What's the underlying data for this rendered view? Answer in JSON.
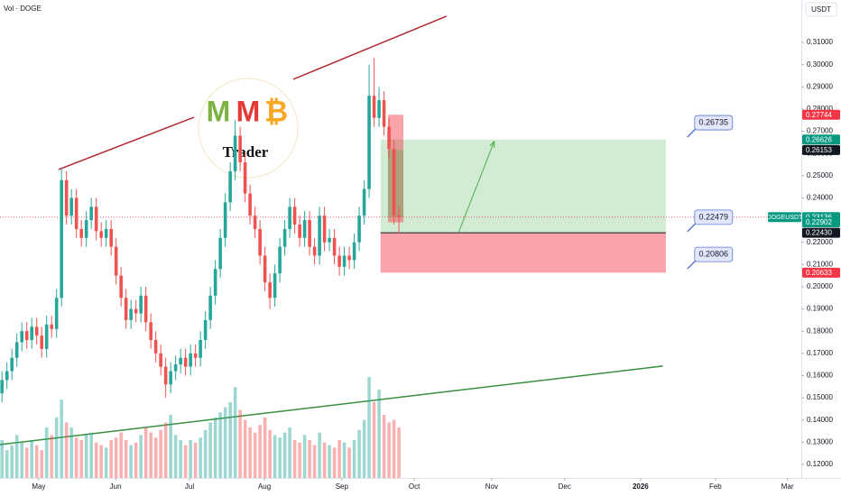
{
  "header": {
    "indicator": "Vol · DOGE",
    "currency": "USDT"
  },
  "logo": {
    "letters": [
      "M",
      "M",
      "₿"
    ],
    "word": "Trader"
  },
  "chart_data": {
    "type": "candlestick",
    "x": [
      0,
      1,
      2,
      3,
      4,
      5,
      6,
      7,
      8,
      9,
      10,
      11,
      12,
      13,
      14,
      15,
      16,
      17,
      18,
      19,
      20,
      21,
      22,
      23,
      24,
      25,
      26,
      27,
      28,
      29,
      30,
      31,
      32,
      33,
      34,
      35,
      36,
      37,
      38,
      39,
      40,
      41,
      42,
      43,
      44,
      45,
      46,
      47,
      48,
      49,
      50,
      51,
      52,
      53,
      54,
      55,
      56,
      57,
      58,
      59,
      60,
      61,
      62,
      63,
      64,
      65,
      66,
      67,
      68,
      69,
      70,
      71,
      72,
      73,
      74,
      75,
      76,
      77,
      78,
      79,
      80
    ],
    "open": [
      0.152,
      0.158,
      0.162,
      0.168,
      0.175,
      0.18,
      0.176,
      0.182,
      0.178,
      0.172,
      0.183,
      0.181,
      0.195,
      0.248,
      0.232,
      0.24,
      0.226,
      0.222,
      0.23,
      0.236,
      0.225,
      0.222,
      0.226,
      0.218,
      0.205,
      0.195,
      0.185,
      0.19,
      0.188,
      0.196,
      0.184,
      0.176,
      0.17,
      0.164,
      0.156,
      0.162,
      0.165,
      0.168,
      0.164,
      0.17,
      0.168,
      0.176,
      0.185,
      0.196,
      0.208,
      0.222,
      0.238,
      0.252,
      0.268,
      0.256,
      0.242,
      0.232,
      0.226,
      0.214,
      0.202,
      0.195,
      0.206,
      0.218,
      0.226,
      0.236,
      0.228,
      0.222,
      0.23,
      0.218,
      0.214,
      0.232,
      0.22,
      0.222,
      0.214,
      0.209,
      0.214,
      0.212,
      0.22,
      0.232,
      0.244,
      0.286,
      0.276,
      0.284,
      0.272,
      0.262,
      0.232
    ],
    "high": [
      0.162,
      0.166,
      0.172,
      0.179,
      0.184,
      0.184,
      0.186,
      0.186,
      0.182,
      0.187,
      0.187,
      0.199,
      0.253,
      0.252,
      0.244,
      0.244,
      0.23,
      0.234,
      0.24,
      0.24,
      0.229,
      0.23,
      0.23,
      0.222,
      0.209,
      0.199,
      0.194,
      0.194,
      0.2,
      0.2,
      0.188,
      0.18,
      0.174,
      0.168,
      0.166,
      0.169,
      0.172,
      0.172,
      0.174,
      0.174,
      0.18,
      0.189,
      0.2,
      0.212,
      0.226,
      0.242,
      0.256,
      0.275,
      0.272,
      0.26,
      0.246,
      0.236,
      0.23,
      0.218,
      0.206,
      0.21,
      0.222,
      0.23,
      0.24,
      0.24,
      0.232,
      0.234,
      0.234,
      0.222,
      0.236,
      0.236,
      0.226,
      0.226,
      0.218,
      0.218,
      0.218,
      0.224,
      0.236,
      0.248,
      0.3,
      0.303,
      0.29,
      0.288,
      0.276,
      0.266,
      0.236
    ],
    "low": [
      0.148,
      0.154,
      0.158,
      0.164,
      0.171,
      0.172,
      0.172,
      0.174,
      0.168,
      0.168,
      0.177,
      0.177,
      0.191,
      0.228,
      0.228,
      0.222,
      0.218,
      0.218,
      0.226,
      0.221,
      0.218,
      0.218,
      0.214,
      0.201,
      0.191,
      0.181,
      0.181,
      0.184,
      0.184,
      0.18,
      0.172,
      0.166,
      0.16,
      0.15,
      0.152,
      0.158,
      0.161,
      0.16,
      0.16,
      0.164,
      0.164,
      0.172,
      0.181,
      0.192,
      0.204,
      0.218,
      0.234,
      0.248,
      0.252,
      0.238,
      0.228,
      0.222,
      0.21,
      0.198,
      0.19,
      0.191,
      0.202,
      0.214,
      0.222,
      0.224,
      0.218,
      0.218,
      0.214,
      0.21,
      0.21,
      0.216,
      0.216,
      0.21,
      0.205,
      0.205,
      0.208,
      0.208,
      0.216,
      0.228,
      0.24,
      0.272,
      0.272,
      0.268,
      0.258,
      0.228,
      0.224
    ],
    "close": [
      0.158,
      0.162,
      0.168,
      0.175,
      0.18,
      0.176,
      0.182,
      0.178,
      0.172,
      0.183,
      0.181,
      0.195,
      0.248,
      0.232,
      0.24,
      0.226,
      0.222,
      0.23,
      0.236,
      0.225,
      0.222,
      0.226,
      0.218,
      0.205,
      0.195,
      0.185,
      0.19,
      0.188,
      0.196,
      0.184,
      0.176,
      0.17,
      0.164,
      0.156,
      0.162,
      0.165,
      0.168,
      0.164,
      0.17,
      0.168,
      0.176,
      0.185,
      0.196,
      0.208,
      0.222,
      0.238,
      0.252,
      0.268,
      0.256,
      0.242,
      0.232,
      0.226,
      0.214,
      0.202,
      0.195,
      0.206,
      0.218,
      0.226,
      0.236,
      0.228,
      0.222,
      0.23,
      0.218,
      0.214,
      0.232,
      0.22,
      0.222,
      0.214,
      0.209,
      0.214,
      0.212,
      0.22,
      0.232,
      0.244,
      0.286,
      0.276,
      0.284,
      0.272,
      0.262,
      0.232,
      0.2314
    ],
    "volume": [
      30,
      22,
      26,
      34,
      28,
      24,
      30,
      26,
      22,
      40,
      34,
      48,
      62,
      44,
      40,
      32,
      30,
      34,
      36,
      28,
      26,
      24,
      30,
      32,
      36,
      30,
      26,
      28,
      34,
      40,
      36,
      32,
      38,
      44,
      50,
      34,
      30,
      26,
      30,
      28,
      32,
      38,
      44,
      48,
      52,
      56,
      60,
      72,
      54,
      46,
      40,
      36,
      42,
      48,
      38,
      34,
      32,
      36,
      40,
      30,
      28,
      34,
      30,
      26,
      36,
      28,
      26,
      24,
      30,
      28,
      24,
      30,
      38,
      46,
      80,
      60,
      70,
      50,
      44,
      46,
      40
    ],
    "vlim": [
      0,
      100
    ],
    "up_color": "#26a69a",
    "down_color": "#ef5350",
    "xlim": [
      -0.4,
      161.1
    ],
    "xticks": [
      {
        "value": 7.4,
        "label": "May"
      },
      {
        "value": 22.9,
        "label": "Jun"
      },
      {
        "value": 37.8,
        "label": "Jul"
      },
      {
        "value": 52.9,
        "label": "Aug"
      },
      {
        "value": 68.5,
        "label": "Sep"
      },
      {
        "value": 83.1,
        "label": "Oct"
      },
      {
        "value": 98.7,
        "label": "Nov"
      },
      {
        "value": 113.4,
        "label": "Dec"
      },
      {
        "value": 128.7,
        "label": "2026"
      },
      {
        "value": 143.8,
        "label": "Feb"
      },
      {
        "value": 158.3,
        "label": "Mar"
      }
    ],
    "ylim": [
      0.1139,
      0.3291
    ],
    "yticks": [
      {
        "value": 0.12,
        "label": "0.12000"
      },
      {
        "value": 0.13,
        "label": "0.13000"
      },
      {
        "value": 0.14,
        "label": "0.14000"
      },
      {
        "value": 0.15,
        "label": "0.15000"
      },
      {
        "value": 0.16,
        "label": "0.16000"
      },
      {
        "value": 0.17,
        "label": "0.17000"
      },
      {
        "value": 0.18,
        "label": "0.18000"
      },
      {
        "value": 0.19,
        "label": "0.19000"
      },
      {
        "value": 0.2,
        "label": "0.20000"
      },
      {
        "value": 0.21,
        "label": "0.21000"
      },
      {
        "value": 0.22,
        "label": "0.22000"
      },
      {
        "value": 0.23,
        "label": "0.23000"
      },
      {
        "value": 0.24,
        "label": "0.24000"
      },
      {
        "value": 0.25,
        "label": "0.25000"
      },
      {
        "value": 0.26,
        "label": "0.26000"
      },
      {
        "value": 0.27,
        "label": "0.27000"
      },
      {
        "value": 0.28,
        "label": "0.28000"
      },
      {
        "value": 0.29,
        "label": "0.29000"
      },
      {
        "value": 0.3,
        "label": "0.30000"
      },
      {
        "value": 0.31,
        "label": "0.31000"
      }
    ],
    "price_tags": [
      {
        "value": 0.27744,
        "label": "0.27744",
        "color": "#f23645"
      },
      {
        "value": 0.26626,
        "label": "0.26626",
        "color": "#089981"
      },
      {
        "value": 0.26153,
        "label": "0.26153",
        "color": "#131722"
      },
      {
        "value": 0.23136,
        "label": "0.23136",
        "color": "#089981",
        "symbol": "DOGEUSDT"
      },
      {
        "value": 0.22902,
        "label": "0.22902",
        "color": "#089981"
      },
      {
        "value": 0.2243,
        "label": "0.22430",
        "color": "#131722"
      },
      {
        "value": 0.20633,
        "label": "0.20633",
        "color": "#f23645"
      }
    ],
    "position": {
      "x_start": 76.3,
      "x_end": 133.8,
      "active_x": [
        77.8,
        80.9
      ],
      "arrow": [
        [
          92,
          0.2243
        ],
        [
          99.2,
          0.2654
        ]
      ]
    },
    "annotations": [
      {
        "value": 0.26735,
        "x": 139.6
      },
      {
        "value": 0.22479,
        "x": 139.6
      },
      {
        "value": 0.20806,
        "x": 139.6
      }
    ],
    "trendlines": [
      {
        "color": "#b22833",
        "points": [
          [
            11.4,
            0.2528
          ],
          [
            38.7,
            0.2763
          ]
        ]
      },
      {
        "color": "#b22833",
        "points": [
          [
            58.7,
            0.2934
          ],
          [
            89.6,
            0.3218
          ]
        ]
      },
      {
        "color": "#388e3c",
        "points": [
          [
            -0.4,
            0.1289
          ],
          [
            133.2,
            0.1643
          ]
        ]
      }
    ]
  }
}
